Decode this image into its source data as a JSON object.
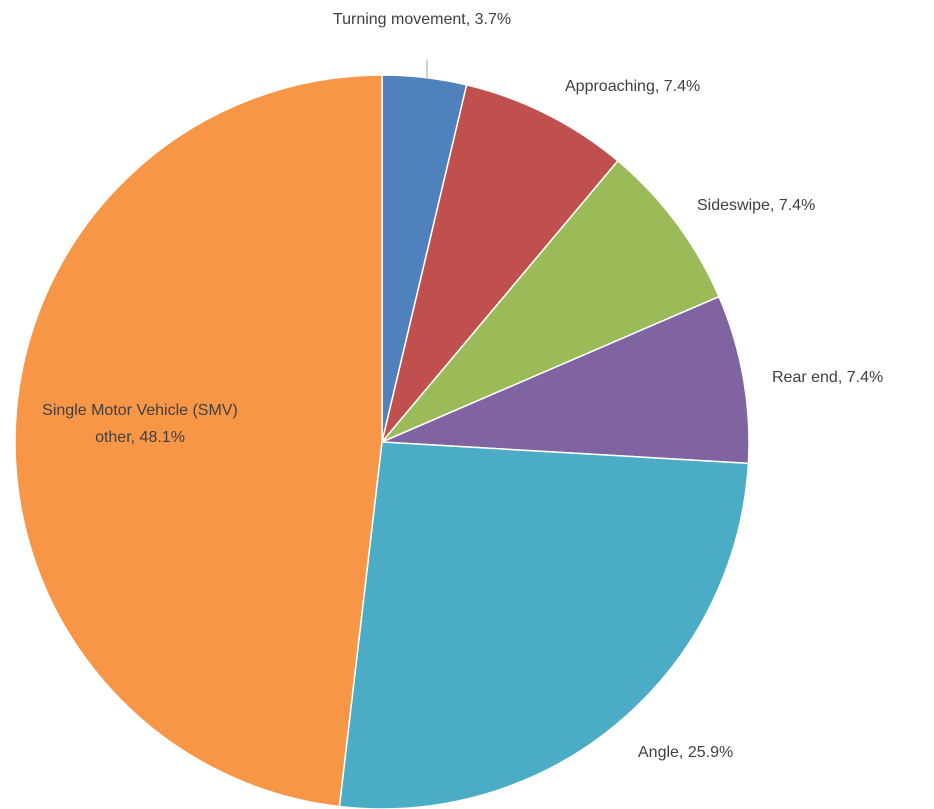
{
  "chart_data": {
    "type": "pie",
    "categories": [
      "Turning movement,",
      "Approaching,",
      "Sideswipe,",
      "Rear end,",
      "Angle,",
      "Single Motor Vehicle (SMV) other,"
    ],
    "values": [
      3.7,
      7.4,
      7.4,
      7.4,
      25.9,
      48.1
    ],
    "value_labels": [
      "3.7%",
      "7.4%",
      "7.4%",
      "7.4%",
      "25.9%",
      "48.1%"
    ],
    "colors": [
      "#4f81bd",
      "#c0504d",
      "#9bbb59",
      "#8064a2",
      "#4bacc6",
      "#f79646"
    ]
  }
}
